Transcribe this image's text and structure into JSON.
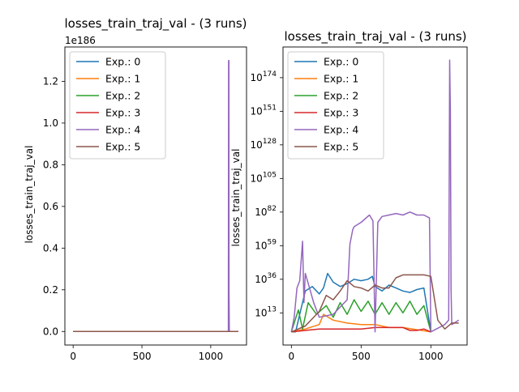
{
  "chart_data": [
    {
      "type": "line",
      "title": "losses_train_traj_val - (3 runs)",
      "xlabel": "",
      "ylabel": "losses_train_traj_val",
      "offset_label": "1e186",
      "xlim": [
        -60,
        1260
      ],
      "ylim": [
        -0.065,
        1.365
      ],
      "x_ticks": [
        0,
        500,
        1000
      ],
      "x_tick_labels": [
        "0",
        "500",
        "1000"
      ],
      "y_ticks": [
        0,
        0.2,
        0.4,
        0.6,
        0.8,
        1.0,
        1.2
      ],
      "y_tick_labels": [
        "0.0",
        "0.2",
        "0.4",
        "0.6",
        "0.8",
        "1.0",
        "1.2"
      ],
      "grid": false,
      "legend_position": "top-left",
      "series": [
        {
          "name": "Exp.: 0",
          "color": "#1f77b4",
          "x": [
            0,
            1200
          ],
          "y": [
            0,
            0
          ]
        },
        {
          "name": "Exp.: 1",
          "color": "#ff7f0e",
          "x": [
            0,
            1200
          ],
          "y": [
            0,
            0
          ]
        },
        {
          "name": "Exp.: 2",
          "color": "#2ca02c",
          "x": [
            0,
            1200
          ],
          "y": [
            0,
            0
          ]
        },
        {
          "name": "Exp.: 3",
          "color": "#d62728",
          "x": [
            0,
            1200
          ],
          "y": [
            0,
            0
          ]
        },
        {
          "name": "Exp.: 4",
          "color": "#9467bd",
          "x": [
            0,
            1128,
            1130,
            1132,
            1133,
            1135,
            1137,
            1200
          ],
          "y": [
            0,
            0,
            1.3,
            1.3,
            0.2,
            0.0,
            0,
            0
          ]
        },
        {
          "name": "Exp.: 5",
          "color": "#8c564b",
          "x": [
            0,
            1200
          ],
          "y": [
            0,
            0
          ]
        }
      ]
    },
    {
      "type": "line",
      "title": "losses_train_traj_val - (3 runs)",
      "xlabel": "",
      "ylabel": "losses_train_traj_val",
      "yscale": "log",
      "xlim": [
        -60,
        1260
      ],
      "ylim_log10": [
        -9,
        195
      ],
      "x_ticks": [
        0,
        500,
        1000
      ],
      "x_tick_labels": [
        "0",
        "500",
        "1000"
      ],
      "y_ticks_log10": [
        13,
        36,
        59,
        82,
        105,
        128,
        151,
        174
      ],
      "y_tick_base": "10",
      "y_tick_exponents": [
        "13",
        "36",
        "59",
        "82",
        "105",
        "128",
        "151",
        "174"
      ],
      "grid": false,
      "legend_position": "top-left",
      "series": [
        {
          "name": "Exp.: 0",
          "color": "#1f77b4",
          "x": [
            0,
            30,
            60,
            100,
            150,
            200,
            230,
            260,
            300,
            350,
            400,
            450,
            500,
            550,
            580,
            600,
            650,
            700,
            750,
            800,
            850,
            900,
            950,
            1000
          ],
          "y_log10": [
            0,
            0,
            12,
            28,
            31,
            26,
            30,
            40,
            34,
            31,
            33,
            36,
            35,
            36,
            38,
            31,
            28,
            32,
            30,
            28,
            27,
            29,
            30,
            0
          ]
        },
        {
          "name": "Exp.: 1",
          "color": "#ff7f0e",
          "x": [
            0,
            100,
            200,
            230,
            300,
            400,
            500,
            600,
            700,
            800,
            1000
          ],
          "y_log10": [
            0,
            2,
            5,
            12,
            8,
            6,
            5,
            5,
            3,
            3,
            0
          ]
        },
        {
          "name": "Exp.: 2",
          "color": "#2ca02c",
          "x": [
            0,
            50,
            80,
            120,
            180,
            250,
            300,
            350,
            400,
            450,
            500,
            550,
            600,
            650,
            700,
            750,
            800,
            850,
            900,
            950,
            1000
          ],
          "y_log10": [
            0,
            15,
            2,
            20,
            12,
            18,
            10,
            20,
            12,
            22,
            14,
            21,
            12,
            20,
            12,
            20,
            13,
            21,
            12,
            18,
            0
          ]
        },
        {
          "name": "Exp.: 3",
          "color": "#d62728",
          "x": [
            0,
            100,
            200,
            300,
            400,
            500,
            600,
            700,
            800,
            850,
            900,
            950,
            1000
          ],
          "y_log10": [
            0,
            1,
            2,
            2,
            2,
            2,
            3,
            3,
            3,
            1,
            1,
            2,
            0
          ]
        },
        {
          "name": "Exp.: 4",
          "color": "#9467bd",
          "x": [
            0,
            20,
            40,
            60,
            80,
            90,
            100,
            130,
            160,
            200,
            300,
            400,
            420,
            440,
            450,
            500,
            560,
            585,
            600,
            620,
            650,
            700,
            750,
            800,
            850,
            900,
            950,
            990,
            1000,
            1100,
            1128,
            1135,
            1140,
            1145,
            1150,
            1200
          ],
          "y_log10": [
            0,
            10,
            30,
            35,
            62,
            20,
            40,
            30,
            20,
            10,
            12,
            22,
            60,
            70,
            72,
            75,
            80,
            76,
            0,
            75,
            79,
            80,
            81,
            80,
            82,
            80,
            80,
            78,
            0,
            5,
            8,
            186,
            150,
            30,
            5,
            8
          ]
        },
        {
          "name": "Exp.: 5",
          "color": "#8c564b",
          "x": [
            0,
            100,
            200,
            250,
            300,
            350,
            400,
            450,
            500,
            550,
            600,
            650,
            700,
            750,
            800,
            850,
            900,
            950,
            1000,
            1050,
            1100,
            1150,
            1200
          ],
          "y_log10": [
            0,
            4,
            14,
            25,
            22,
            28,
            35,
            31,
            30,
            28,
            32,
            30,
            30,
            37,
            39,
            39,
            39,
            39,
            38,
            8,
            2,
            6,
            6
          ]
        }
      ]
    }
  ]
}
